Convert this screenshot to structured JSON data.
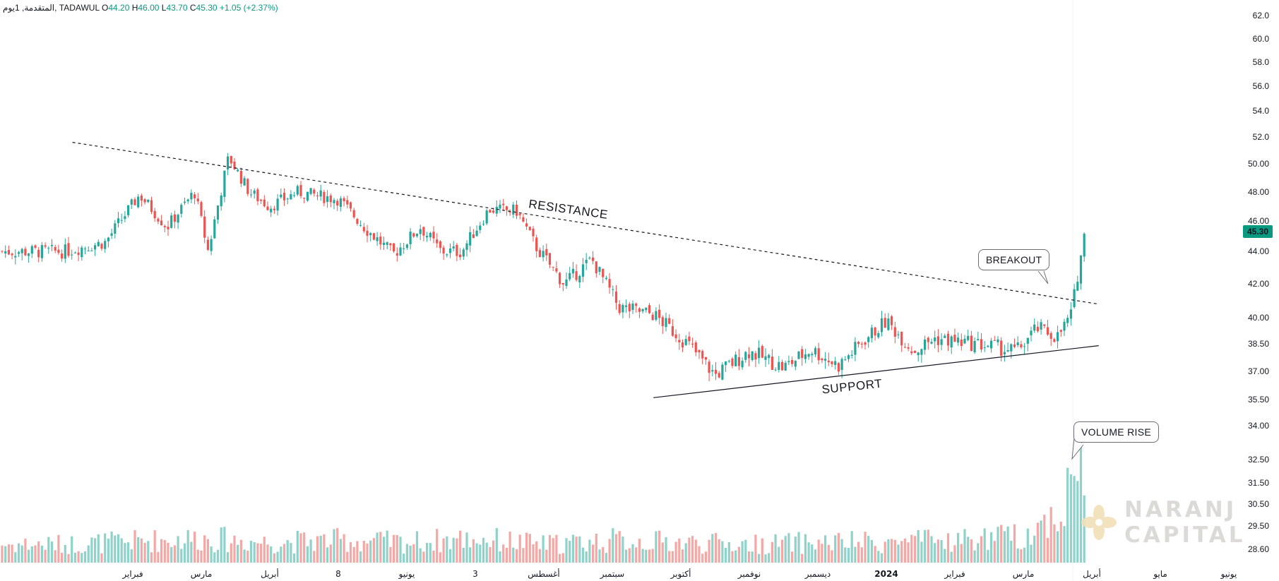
{
  "legend": {
    "symbol": "المتقدمة, 1يوم, TADAWUL",
    "open_label": "O",
    "open": "44.20",
    "high_label": "H",
    "high": "46.00",
    "low_label": "L",
    "low": "43.70",
    "close_label": "C",
    "close": "45.30",
    "change": "+1.05 (+2.37%)"
  },
  "last_price": "45.30",
  "annotations": {
    "resistance": "RESISTANCE",
    "support": "SUPPORT",
    "breakout": "BREAKOUT",
    "volume_rise": "VOLUME RISE"
  },
  "watermark": {
    "line1": "NARANJ",
    "line2": "CAPITAL"
  },
  "colors": {
    "up": "#26a69a",
    "down": "#ef5350",
    "vol_up": "#8fd2c9",
    "vol_down": "#f4a8a5",
    "last_price_bg": "#089981"
  },
  "chart_data": {
    "type": "candlestick",
    "price_axis_ticks": [
      "62.0",
      "60.0",
      "58.0",
      "56.0",
      "54.0",
      "52.0",
      "50.00",
      "48.00",
      "46.00",
      "44.00",
      "42.00",
      "40.00",
      "38.50",
      "37.00",
      "35.50",
      "34.00",
      "32.50",
      "31.50",
      "30.50",
      "29.50",
      "28.60"
    ],
    "x_axis_labels": [
      "فبراير",
      "مارس",
      "أبريل",
      "8",
      "يونيو",
      "3",
      "أغسطس",
      "سبتمبر",
      "أكتوبر",
      "نوفمبر",
      "ديسمبر",
      "2024",
      "فبراير",
      "مارس",
      "أبريل",
      "مايو",
      "يونيو"
    ],
    "x_axis_positions": [
      0.5,
      1.0,
      1.5,
      2.0,
      2.5,
      3.0,
      3.5,
      4.0,
      4.5,
      5.0,
      5.5,
      6.0,
      6.5,
      7.0,
      7.5,
      8.0,
      8.5
    ],
    "price_path": [
      [
        0,
        44.0
      ],
      [
        0.3,
        44.6
      ],
      [
        0.55,
        47.8
      ],
      [
        0.75,
        45.6
      ],
      [
        0.95,
        48.0
      ],
      [
        1.05,
        44.0
      ],
      [
        1.2,
        50.5
      ],
      [
        1.35,
        48.0
      ],
      [
        1.5,
        47.0
      ],
      [
        1.7,
        48.0
      ],
      [
        2.0,
        47.5
      ],
      [
        2.2,
        45.5
      ],
      [
        2.4,
        43.8
      ],
      [
        2.6,
        45.6
      ],
      [
        2.75,
        44.0
      ],
      [
        2.9,
        44.0
      ],
      [
        3.1,
        46.8
      ],
      [
        3.3,
        46.7
      ],
      [
        3.45,
        44.2
      ],
      [
        3.65,
        42.0
      ],
      [
        3.85,
        43.5
      ],
      [
        4.05,
        40.6
      ],
      [
        4.3,
        40.2
      ],
      [
        4.55,
        38.5
      ],
      [
        4.75,
        36.8
      ],
      [
        5.0,
        38.1
      ],
      [
        5.25,
        37.2
      ],
      [
        5.45,
        38.2
      ],
      [
        5.65,
        37.3
      ],
      [
        5.85,
        38.8
      ],
      [
        6.0,
        39.8
      ],
      [
        6.2,
        38.1
      ],
      [
        6.35,
        38.8
      ],
      [
        6.55,
        38.6
      ],
      [
        6.75,
        38.4
      ],
      [
        6.95,
        38.1
      ],
      [
        7.1,
        39.4
      ],
      [
        7.25,
        38.9
      ],
      [
        7.35,
        40.2
      ],
      [
        7.45,
        45.3
      ]
    ],
    "volume_profile": [
      [
        0,
        0.18
      ],
      [
        1.0,
        0.24
      ],
      [
        1.5,
        0.2
      ],
      [
        2.0,
        0.22
      ],
      [
        2.5,
        0.2
      ],
      [
        3.0,
        0.24
      ],
      [
        3.5,
        0.18
      ],
      [
        4.0,
        0.22
      ],
      [
        4.5,
        0.2
      ],
      [
        5.0,
        0.18
      ],
      [
        5.5,
        0.2
      ],
      [
        6.0,
        0.2
      ],
      [
        6.5,
        0.22
      ],
      [
        7.0,
        0.26
      ],
      [
        7.3,
        0.5
      ],
      [
        7.42,
        1.0
      ],
      [
        7.5,
        0.6
      ]
    ],
    "trendlines": [
      {
        "name": "resistance",
        "from": [
          0.06,
          51.6
        ],
        "to": [
          7.55,
          40.8
        ],
        "style": "dashed"
      },
      {
        "name": "support",
        "from": [
          4.3,
          35.6
        ],
        "to": [
          7.55,
          38.4
        ],
        "style": "solid"
      }
    ]
  }
}
